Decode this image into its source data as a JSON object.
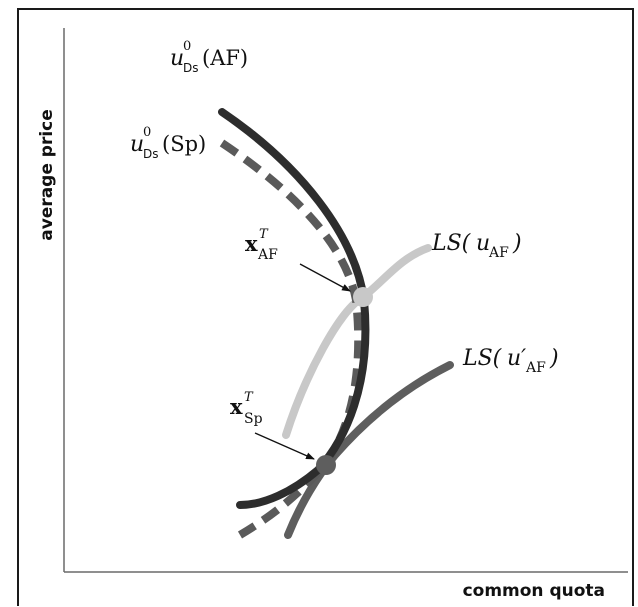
{
  "axes": {
    "y_label": "average price",
    "x_label": "common quota"
  },
  "curves": {
    "u_af": {
      "base": "u",
      "sup": "0",
      "sub": "Ds",
      "arg": "(AF)",
      "color": "#2d2d2d"
    },
    "u_sp": {
      "base": "u",
      "sup": "0",
      "sub": "Ds",
      "arg": "(Sp)",
      "color": "#5a5a5a"
    },
    "ls_af": {
      "prefix": "LS(",
      "var": "u",
      "sub": "AF",
      "suffix": ")",
      "color": "#c8c8c8"
    },
    "ls_af_prime": {
      "prefix": "LS(",
      "var": "u′",
      "sub": "AF",
      "suffix": ")",
      "color": "#5e5e5e"
    }
  },
  "points": {
    "x_af": {
      "base": "x",
      "sup": "T",
      "sub": "AF",
      "color": "#c8c8c8"
    },
    "x_sp": {
      "base": "x",
      "sup": "T",
      "sub": "Sp",
      "color": "#5e5e5e"
    }
  }
}
